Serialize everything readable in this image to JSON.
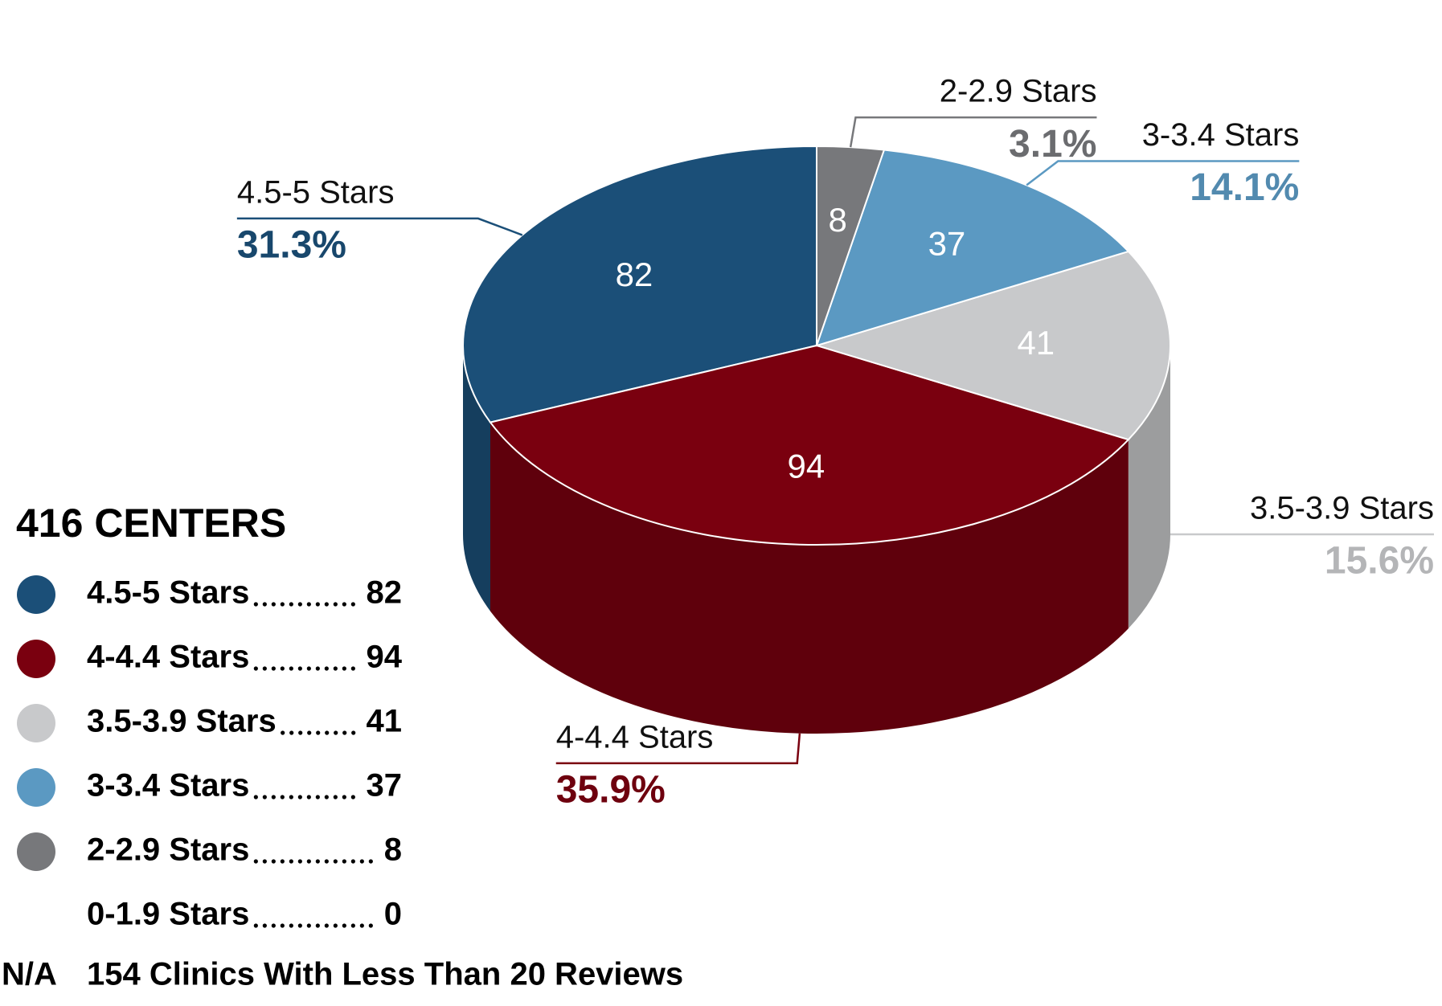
{
  "chart_data": {
    "type": "pie3d",
    "title": "416 CENTERS",
    "categories": [
      "4.5-5 Stars",
      "4-4.4 Stars",
      "3.5-3.9 Stars",
      "3-3.4 Stars",
      "2-2.9 Stars",
      "0-1.9 Stars"
    ],
    "values": [
      82,
      94,
      41,
      37,
      8,
      0
    ],
    "colors": [
      "#1b4f78",
      "#7a000f",
      "#c8c9cb",
      "#5b99c2",
      "#77787b",
      null
    ],
    "percentages": [
      31.3,
      35.9,
      15.6,
      14.1,
      3.1,
      null
    ],
    "percentage_labels": [
      "31.3%",
      "35.9%",
      "15.6%",
      "14.1%",
      "3.1%",
      null
    ],
    "note": {
      "label": "N/A",
      "text": "154 Clinics With Less Than 20 Reviews"
    }
  }
}
